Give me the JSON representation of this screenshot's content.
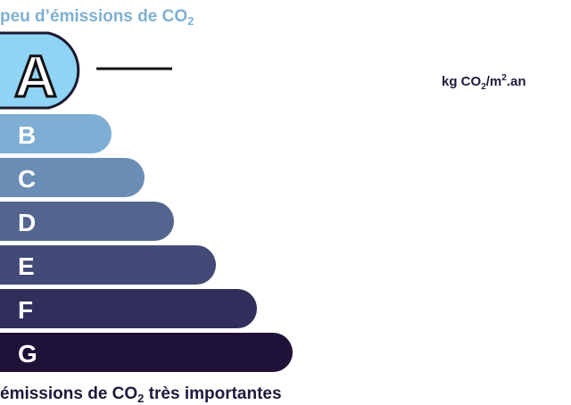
{
  "header": {
    "text": "peu d’émissions de CO",
    "sub": "2"
  },
  "classes": [
    {
      "letter": "A"
    },
    {
      "letter": "B"
    },
    {
      "letter": "C"
    },
    {
      "letter": "D"
    },
    {
      "letter": "E"
    },
    {
      "letter": "F"
    },
    {
      "letter": "G"
    }
  ],
  "unit": {
    "a": "kg CO",
    "sub": "2",
    "b": "/m",
    "sup": "2",
    "c": ".an"
  },
  "footer": {
    "a": "émissions de CO",
    "sub": "2",
    "b": " très importantes"
  }
}
